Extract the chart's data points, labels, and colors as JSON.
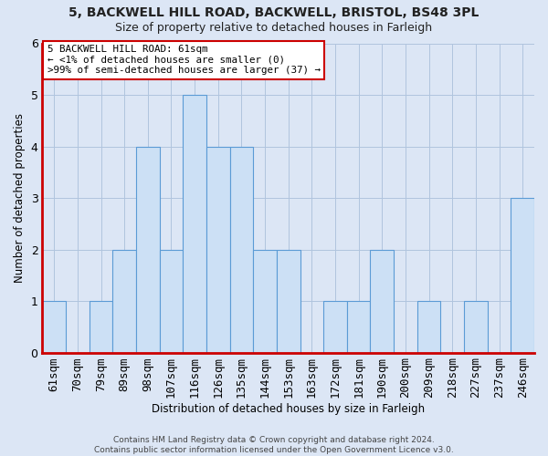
{
  "title1": "5, BACKWELL HILL ROAD, BACKWELL, BRISTOL, BS48 3PL",
  "title2": "Size of property relative to detached houses in Farleigh",
  "xlabel": "Distribution of detached houses by size in Farleigh",
  "ylabel": "Number of detached properties",
  "categories": [
    "61sqm",
    "70sqm",
    "79sqm",
    "89sqm",
    "98sqm",
    "107sqm",
    "116sqm",
    "126sqm",
    "135sqm",
    "144sqm",
    "153sqm",
    "163sqm",
    "172sqm",
    "181sqm",
    "190sqm",
    "200sqm",
    "209sqm",
    "218sqm",
    "227sqm",
    "237sqm",
    "246sqm"
  ],
  "values": [
    1,
    0,
    1,
    2,
    4,
    2,
    5,
    4,
    4,
    2,
    2,
    0,
    1,
    1,
    2,
    0,
    1,
    0,
    1,
    0,
    3
  ],
  "bar_color": "#cce0f5",
  "bar_edge_color": "#5b9bd5",
  "highlight_index": 0,
  "highlight_color": "#cc0000",
  "annotation_text": "5 BACKWELL HILL ROAD: 61sqm\n← <1% of detached houses are smaller (0)\n>99% of semi-detached houses are larger (37) →",
  "annotation_box_color": "#ffffff",
  "annotation_box_edge_color": "#cc0000",
  "footer": "Contains HM Land Registry data © Crown copyright and database right 2024.\nContains public sector information licensed under the Open Government Licence v3.0.",
  "ylim": [
    0,
    6
  ],
  "background_color": "#dce6f5",
  "plot_bg_color": "#dce6f5",
  "grid_color": "#b0c4de"
}
